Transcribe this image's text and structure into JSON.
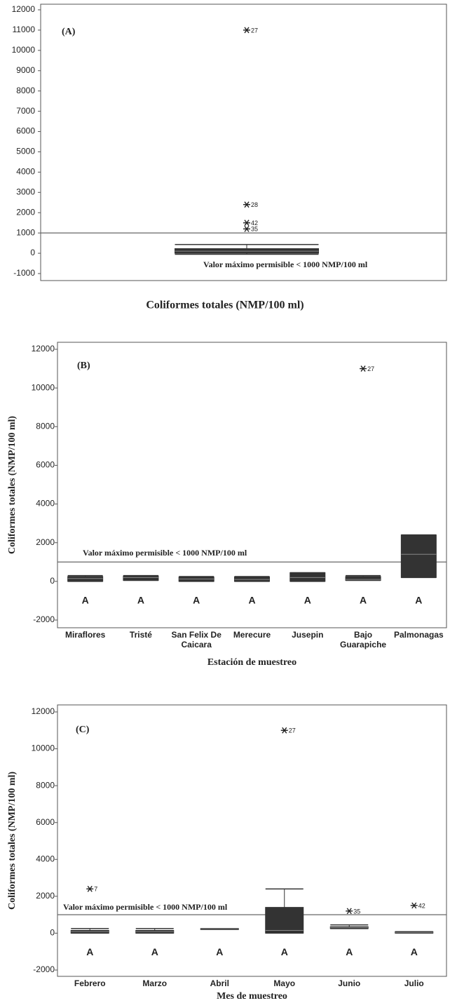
{
  "chart_data": [
    {
      "type": "box",
      "panel_label": "(A)",
      "xlabel": "Coliformes totales (NMP/100 ml)",
      "ylim": [
        -1000,
        12000
      ],
      "yticks": [
        -1000,
        0,
        1000,
        2000,
        3000,
        4000,
        5000,
        6000,
        7000,
        8000,
        9000,
        10000,
        11000,
        12000
      ],
      "ref_line": 1000,
      "ref_label": "Valor máximo permisible < 1000 NMP/100 ml",
      "color": "#333333",
      "categories": [
        null
      ],
      "boxes": [
        {
          "whisker_low": -50,
          "q1": 0,
          "median": 100,
          "q3": 230,
          "whisker_high": 430,
          "outliers": [
            {
              "value": 11000,
              "id": "27"
            },
            {
              "value": 2400,
              "id": "28"
            },
            {
              "value": 1500,
              "id": "42"
            },
            {
              "value": 1200,
              "id": "35"
            }
          ]
        }
      ]
    },
    {
      "type": "box",
      "panel_label": "(B)",
      "xlabel": "Estación de muestreo",
      "ylabel": "Coliformes totales (NMP/100 ml)",
      "ylim": [
        -2000,
        12000
      ],
      "yticks": [
        -2000,
        0,
        2000,
        4000,
        6000,
        8000,
        10000,
        12000
      ],
      "ref_line": 1000,
      "ref_label": "Valor máximo permisible < 1000 NMP/100 ml",
      "color": "#333333",
      "categories": [
        "Miraflores",
        "Tristé",
        "San Felix De Caicara",
        "Merecure",
        "Jusepin",
        "Bajo Guarapiche",
        "Palmonagas"
      ],
      "groups": [
        "A",
        "A",
        "A",
        "A",
        "A",
        "A",
        "A"
      ],
      "boxes": [
        {
          "whisker_low": 0,
          "q1": 0,
          "median": 150,
          "q3": 250,
          "whisker_high": 300,
          "outliers": []
        },
        {
          "whisker_low": 50,
          "q1": 50,
          "median": 200,
          "q3": 280,
          "whisker_high": 300,
          "outliers": []
        },
        {
          "whisker_low": 0,
          "q1": 0,
          "median": 120,
          "q3": 220,
          "whisker_high": 250,
          "outliers": []
        },
        {
          "whisker_low": 0,
          "q1": 0,
          "median": 100,
          "q3": 230,
          "whisker_high": 250,
          "outliers": []
        },
        {
          "whisker_low": 0,
          "q1": 0,
          "median": 200,
          "q3": 450,
          "whisker_high": 450,
          "outliers": []
        },
        {
          "whisker_low": 50,
          "q1": 50,
          "median": 100,
          "q3": 250,
          "whisker_high": 300,
          "outliers": [
            {
              "value": 11000,
              "id": "27"
            }
          ]
        },
        {
          "whisker_low": 200,
          "q1": 200,
          "median": 1400,
          "q3": 2400,
          "whisker_high": 2400,
          "outliers": []
        }
      ]
    },
    {
      "type": "box",
      "panel_label": "(C)",
      "xlabel": "Mes de muestreo",
      "ylabel": "Coliformes totales (NMP/100 ml)",
      "ylim": [
        -2000,
        12000
      ],
      "yticks": [
        -2000,
        0,
        2000,
        4000,
        6000,
        8000,
        10000,
        12000
      ],
      "ref_line": 1000,
      "ref_label": "Valor máximo permisible < 1000 NMP/100 ml",
      "color": "#333333",
      "categories": [
        "Febrero",
        "Marzo",
        "Abril",
        "Mayo",
        "Junio",
        "Julio"
      ],
      "groups": [
        "A",
        "A",
        "A",
        "A",
        "A",
        "A"
      ],
      "boxes": [
        {
          "whisker_low": 0,
          "q1": 0,
          "median": 80,
          "q3": 150,
          "whisker_high": 250,
          "outliers": [
            {
              "value": 2400,
              "id": "7"
            }
          ]
        },
        {
          "whisker_low": 0,
          "q1": 0,
          "median": 80,
          "q3": 150,
          "whisker_high": 250,
          "outliers": []
        },
        {
          "whisker_low": 250,
          "q1": 250,
          "median": 250,
          "q3": 250,
          "whisker_high": 250,
          "outliers": []
        },
        {
          "whisker_low": 0,
          "q1": 0,
          "median": 150,
          "q3": 1400,
          "whisker_high": 2400,
          "outliers": [
            {
              "value": 11000,
              "id": "27"
            }
          ]
        },
        {
          "whisker_low": 250,
          "q1": 250,
          "median": 300,
          "q3": 350,
          "whisker_high": 450,
          "outliers": [
            {
              "value": 1200,
              "id": "35"
            }
          ]
        },
        {
          "whisker_low": 0,
          "q1": 0,
          "median": 30,
          "q3": 80,
          "whisker_high": 80,
          "outliers": [
            {
              "value": 1500,
              "id": "42"
            }
          ]
        }
      ]
    }
  ]
}
